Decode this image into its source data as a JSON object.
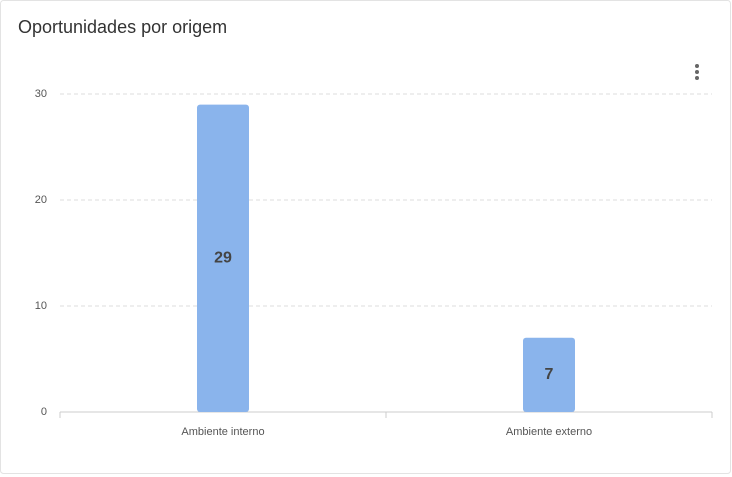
{
  "chart_data": {
    "type": "bar",
    "title": "Oportunidades por origem",
    "categories": [
      "Ambiente interno",
      "Ambiente externo"
    ],
    "values": [
      29,
      7
    ],
    "color": "#8ab4ec",
    "ylim": [
      0,
      30
    ],
    "yticks": [
      0,
      10,
      20,
      30
    ],
    "grid": true
  }
}
